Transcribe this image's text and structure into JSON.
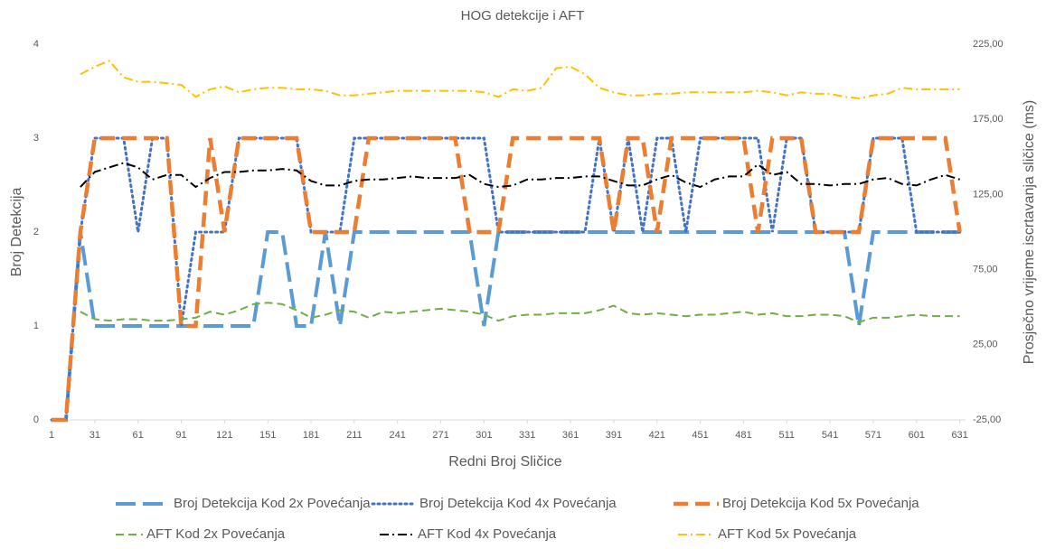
{
  "chart_data": {
    "type": "line",
    "title": "HOG  detekcije i AFT",
    "xlabel": "Redni Broj Sličice",
    "ylabel": "Broj Detekcija",
    "y2label": "Prosječno vrijeme iscrtavanja sličice (ms)",
    "x": [
      1,
      11,
      21,
      31,
      41,
      51,
      61,
      71,
      81,
      91,
      101,
      111,
      121,
      131,
      141,
      151,
      161,
      171,
      181,
      191,
      201,
      211,
      221,
      231,
      241,
      251,
      261,
      271,
      281,
      291,
      301,
      311,
      321,
      331,
      341,
      351,
      361,
      371,
      381,
      391,
      401,
      411,
      421,
      431,
      441,
      451,
      461,
      471,
      481,
      491,
      501,
      511,
      521,
      531,
      541,
      551,
      561,
      571,
      581,
      591,
      601,
      611,
      621,
      631
    ],
    "xlim": [
      1,
      635
    ],
    "xticks": [
      1,
      31,
      61,
      91,
      121,
      151,
      181,
      211,
      241,
      271,
      301,
      331,
      361,
      391,
      421,
      451,
      481,
      511,
      541,
      571,
      601,
      631
    ],
    "ylim": [
      0,
      4
    ],
    "yticks": [
      0,
      1,
      2,
      3,
      4
    ],
    "y2lim": [
      -25,
      225
    ],
    "y2ticks": [
      {
        "value": -25,
        "label": "-25,00"
      },
      {
        "value": 25,
        "label": "25,00"
      },
      {
        "value": 75,
        "label": "75,00"
      },
      {
        "value": 125,
        "label": "125,00"
      },
      {
        "value": 175,
        "label": "175,00"
      },
      {
        "value": 225,
        "label": "225,00"
      }
    ],
    "legend": "bottom",
    "series": [
      {
        "name": "Broj Detekcija Kod 2x Povećanja",
        "color": "#5b9bd5",
        "values": [
          0,
          0,
          2,
          1,
          1,
          1,
          1,
          1,
          1,
          1,
          1,
          1,
          1,
          1,
          1,
          2,
          2,
          1,
          1,
          2,
          1,
          2,
          2,
          2,
          2,
          2,
          2,
          2,
          2,
          2,
          1,
          2,
          2,
          2,
          2,
          2,
          2,
          2,
          2,
          2,
          2,
          2,
          2,
          2,
          2,
          2,
          2,
          2,
          2,
          2,
          2,
          2,
          2,
          2,
          2,
          2,
          1,
          2,
          2,
          2,
          2,
          2,
          2,
          2
        ]
      },
      {
        "name": "Broj Detekcija Kod 4x Povećanja",
        "color": "#4472c4",
        "values": [
          0,
          0,
          2,
          3,
          3,
          3,
          2,
          3,
          3,
          1,
          2,
          2,
          2,
          3,
          3,
          3,
          3,
          3,
          2,
          2,
          2,
          3,
          3,
          3,
          3,
          3,
          3,
          3,
          3,
          3,
          3,
          2,
          2,
          2,
          2,
          2,
          2,
          2,
          3,
          2,
          3,
          2,
          3,
          3,
          2,
          3,
          3,
          3,
          3,
          3,
          2,
          3,
          3,
          2,
          2,
          2,
          2,
          3,
          3,
          3,
          2,
          2,
          2,
          2
        ]
      },
      {
        "name": "Broj Detekcija Kod 5x Povećanja",
        "color": "#ed7d31",
        "values": [
          0,
          0,
          2,
          3,
          3,
          3,
          3,
          3,
          3,
          1,
          1,
          3,
          2,
          3,
          3,
          3,
          3,
          3,
          2,
          2,
          2,
          2,
          3,
          3,
          3,
          3,
          3,
          3,
          3,
          2,
          2,
          2,
          3,
          3,
          3,
          3,
          3,
          3,
          3,
          2,
          3,
          3,
          2,
          3,
          3,
          3,
          3,
          3,
          3,
          2,
          3,
          3,
          3,
          2,
          2,
          2,
          2,
          3,
          3,
          3,
          3,
          3,
          3,
          2
        ]
      },
      {
        "name": "AFT Kod 2x Povećanja",
        "color": "#70ad47",
        "axis": "y2",
        "values": [
          null,
          null,
          47,
          42,
          41,
          42,
          42,
          41,
          41,
          42,
          43,
          47,
          45,
          48,
          52,
          53,
          52,
          48,
          43,
          45,
          48,
          47,
          43,
          47,
          46,
          47,
          48,
          49,
          48,
          47,
          45,
          41,
          44,
          45,
          45,
          46,
          46,
          46,
          48,
          51,
          46,
          45,
          46,
          45,
          44,
          45,
          45,
          46,
          47,
          45,
          46,
          44,
          44,
          45,
          45,
          44,
          40,
          43,
          43,
          44,
          45,
          44,
          44,
          44
        ]
      },
      {
        "name": "AFT Kod 4x Povećanja",
        "color": "#000000",
        "axis": "y2",
        "values": [
          null,
          null,
          130,
          140,
          143,
          146,
          143,
          135,
          138,
          138,
          130,
          136,
          140,
          140,
          141,
          141,
          142,
          141,
          134,
          131,
          131,
          134,
          135,
          135,
          136,
          137,
          136,
          136,
          136,
          138,
          132,
          130,
          131,
          135,
          135,
          136,
          136,
          137,
          137,
          134,
          131,
          131,
          135,
          138,
          133,
          130,
          135,
          137,
          137,
          145,
          138,
          140,
          132,
          132,
          131,
          132,
          132,
          135,
          136,
          132,
          131,
          135,
          138,
          135
        ]
      },
      {
        "name": "AFT Kod 5x Povećanja",
        "color": "#ffc000",
        "axis": "y2",
        "values": [
          null,
          null,
          205,
          210,
          214,
          203,
          200,
          200,
          199,
          198,
          190,
          195,
          197,
          193,
          195,
          196,
          196,
          195,
          195,
          194,
          191,
          191,
          192,
          193,
          194,
          194,
          194,
          194,
          194,
          194,
          193,
          190,
          195,
          194,
          196,
          209,
          210,
          205,
          196,
          193,
          191,
          191,
          192,
          192,
          193,
          193,
          193,
          193,
          193,
          194,
          193,
          191,
          193,
          192,
          192,
          190,
          189,
          191,
          192,
          196,
          195,
          195,
          195,
          195
        ]
      }
    ]
  }
}
